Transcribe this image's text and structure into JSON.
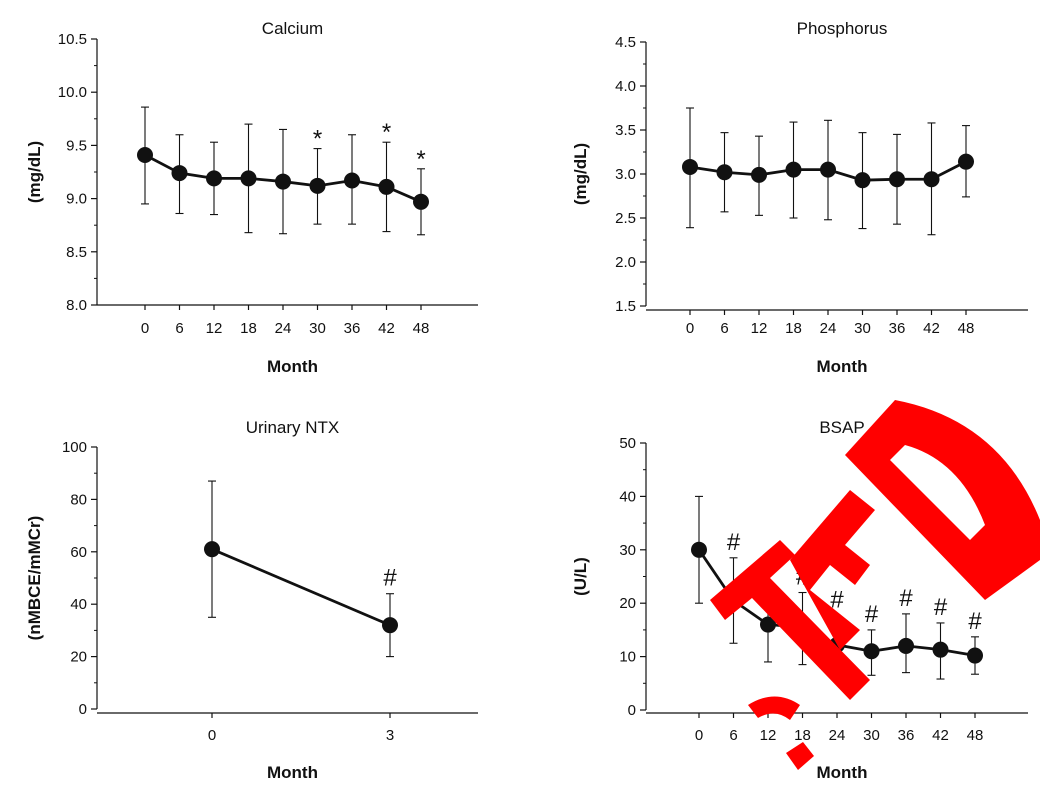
{
  "chart_data": [
    {
      "type": "line",
      "title": "Calcium",
      "xlabel": "Month",
      "ylabel": "(mg/dL)",
      "categories": [
        "0",
        "6",
        "12",
        "18",
        "24",
        "30",
        "36",
        "42",
        "48"
      ],
      "values": [
        9.41,
        9.24,
        9.19,
        9.19,
        9.16,
        9.12,
        9.17,
        9.11,
        8.97
      ],
      "error_up": [
        0.45,
        0.36,
        0.34,
        0.51,
        0.49,
        0.35,
        0.43,
        0.42,
        0.31
      ],
      "error_down": [
        0.46,
        0.38,
        0.34,
        0.51,
        0.49,
        0.36,
        0.41,
        0.42,
        0.31
      ],
      "ylim": [
        8.0,
        10.5
      ],
      "yticks": [
        "8.0",
        "8.5",
        "9.0",
        "9.5",
        "10.0",
        "10.5"
      ],
      "markers": [
        {
          "label": "*",
          "category_index": 5
        },
        {
          "label": "*",
          "category_index": 7
        },
        {
          "label": "*",
          "category_index": 8
        }
      ],
      "grid": false
    },
    {
      "type": "line",
      "title": "Phosphorus",
      "xlabel": "Month",
      "ylabel": "(mg/dL)",
      "categories": [
        "0",
        "6",
        "12",
        "18",
        "24",
        "30",
        "36",
        "42",
        "48"
      ],
      "values": [
        3.08,
        3.02,
        2.99,
        3.05,
        3.05,
        2.93,
        2.94,
        2.94,
        3.14
      ],
      "error_up": [
        0.67,
        0.45,
        0.44,
        0.54,
        0.56,
        0.54,
        0.51,
        0.64,
        0.41
      ],
      "error_down": [
        0.69,
        0.45,
        0.46,
        0.55,
        0.57,
        0.55,
        0.51,
        0.63,
        0.4
      ],
      "ylim": [
        1.5,
        4.5
      ],
      "yticks": [
        "1.5",
        "2.0",
        "2.5",
        "3.0",
        "3.5",
        "4.0",
        "4.5"
      ],
      "markers": [],
      "grid": false
    },
    {
      "type": "line",
      "title": "Urinary NTX",
      "xlabel": "Month",
      "ylabel": "(nMBCE/mMCr)",
      "categories": [
        "0",
        "3"
      ],
      "values": [
        61,
        32
      ],
      "error_up": [
        26,
        12
      ],
      "error_down": [
        26,
        12
      ],
      "ylim": [
        0,
        100
      ],
      "yticks": [
        "0",
        "20",
        "40",
        "60",
        "80",
        "100"
      ],
      "markers": [
        {
          "label": "#",
          "category_index": 1
        }
      ],
      "grid": false
    },
    {
      "type": "line",
      "title": "BSAP",
      "xlabel": "Month",
      "ylabel": "(U/L)",
      "categories": [
        "0",
        "6",
        "12",
        "18",
        "24",
        "30",
        "36",
        "42",
        "48"
      ],
      "values": [
        30,
        20.5,
        16,
        15.5,
        12.2,
        11,
        12,
        11.3,
        10.2
      ],
      "error_up": [
        10,
        8,
        8,
        6.5,
        5.5,
        4,
        6,
        5,
        3.5
      ],
      "error_down": [
        10,
        8,
        7,
        7,
        5,
        4.5,
        5,
        5.5,
        3.5
      ],
      "ylim": [
        0,
        50
      ],
      "yticks": [
        "0",
        "10",
        "20",
        "30",
        "40",
        "50"
      ],
      "markers": [
        {
          "label": "#",
          "category_index": 1
        },
        {
          "label": "#",
          "category_index": 2
        },
        {
          "label": "#",
          "category_index": 3
        },
        {
          "label": "#",
          "category_index": 4
        },
        {
          "label": "#",
          "category_index": 5
        },
        {
          "label": "#",
          "category_index": 6
        },
        {
          "label": "#",
          "category_index": 7
        },
        {
          "label": "#",
          "category_index": 8
        }
      ],
      "grid": false
    }
  ],
  "overlay": {
    "stamp_color": "#ff0000"
  }
}
